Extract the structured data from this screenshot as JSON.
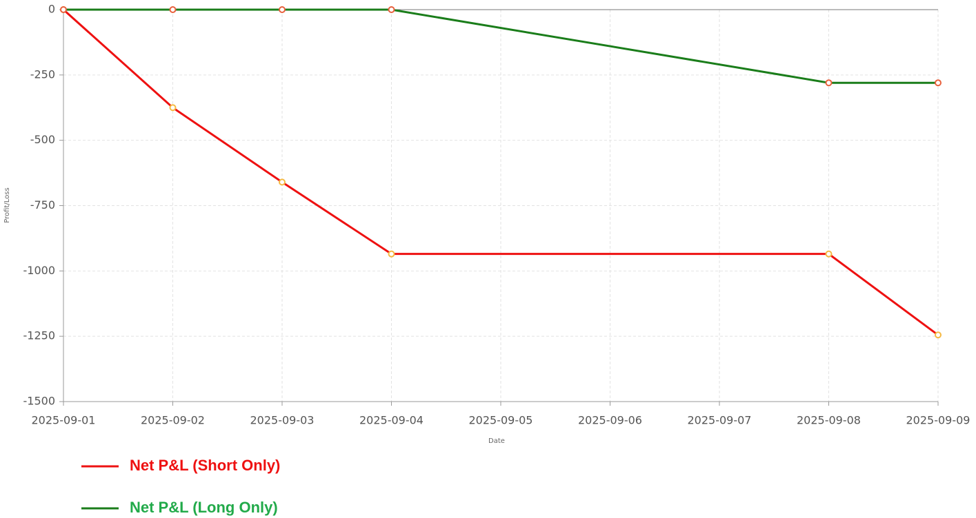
{
  "chart_data": {
    "type": "line",
    "xlabel": "Date",
    "ylabel": "Profit/Loss",
    "x": [
      "2025-09-01",
      "2025-09-02",
      "2025-09-03",
      "2025-09-04",
      "2025-09-08",
      "2025-09-09"
    ],
    "series": [
      {
        "name": "Net P&L (Short Only)",
        "color": "#ee1111",
        "marker_color": "#f5b942",
        "values": [
          0,
          -375,
          -660,
          -935,
          -935,
          -1245
        ]
      },
      {
        "name": "Net P&L (Long Only)",
        "color": "#1a7d1a",
        "marker_color": "#e8603c",
        "values": [
          0,
          0,
          0,
          0,
          -280,
          -280
        ]
      }
    ],
    "xlim": [
      "2025-09-01",
      "2025-09-09"
    ],
    "xticks": [
      "2025-09-01",
      "2025-09-02",
      "2025-09-03",
      "2025-09-04",
      "2025-09-05",
      "2025-09-06",
      "2025-09-07",
      "2025-09-08",
      "2025-09-09"
    ],
    "ylim": [
      -1500,
      0
    ],
    "yticks": [
      0,
      -250,
      -500,
      -750,
      -1000,
      -1250,
      -1500
    ],
    "grid": true,
    "legend": "bottom"
  }
}
